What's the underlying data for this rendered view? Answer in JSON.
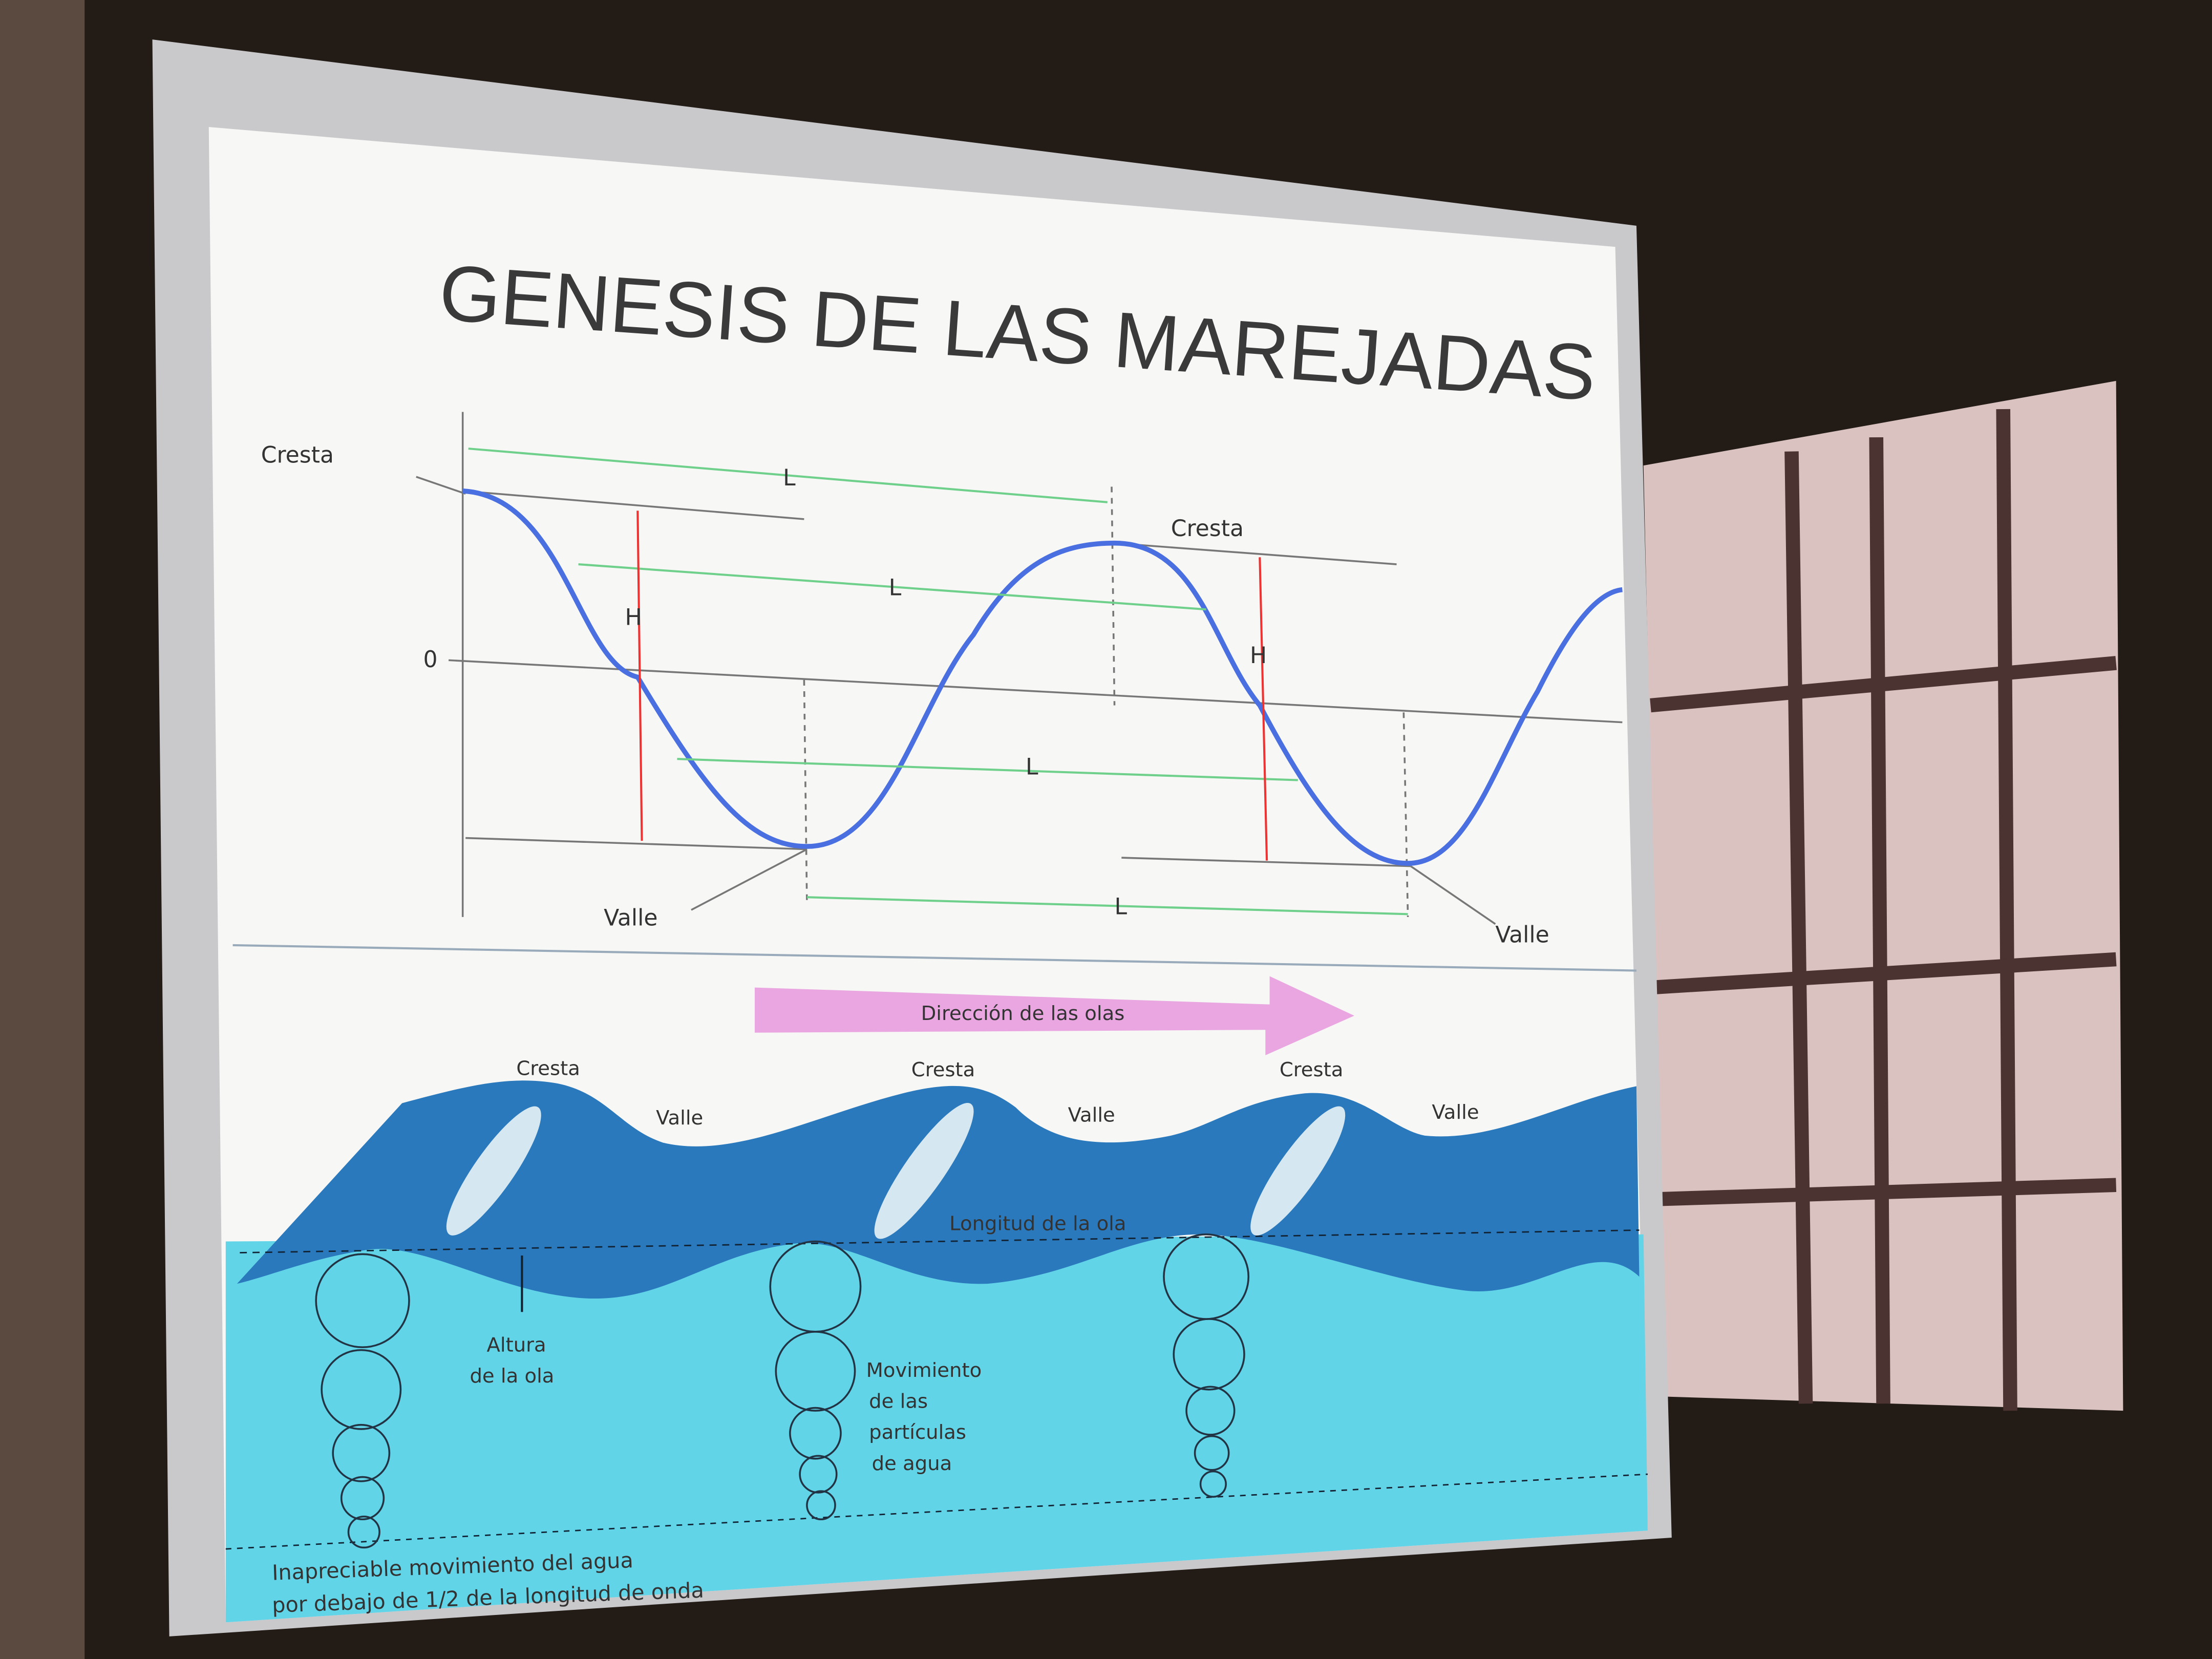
{
  "title": "GENESIS DE LAS MAREJADAS",
  "profile": {
    "crest_left": "Cresta",
    "crest_right": "Cresta",
    "trough_left": "Valle",
    "trough_right": "Valle",
    "zero": "0",
    "lengths": [
      "L",
      "L",
      "L",
      "L"
    ],
    "heights": [
      "H",
      "H"
    ]
  },
  "section": {
    "direction": "Dirección de las olas",
    "crests": [
      "Cresta",
      "Cresta",
      "Cresta"
    ],
    "troughs": [
      "Valle",
      "Valle",
      "Valle"
    ],
    "wave_length": "Longitud de la ola",
    "wave_height": [
      "Altura",
      "de la ola"
    ],
    "particles": [
      "Movimiento",
      "de las",
      "partículas",
      "de agua"
    ],
    "note": [
      "Inapreciable movimiento del agua",
      "por debajo de 1/2 de la longitud de onda"
    ]
  }
}
